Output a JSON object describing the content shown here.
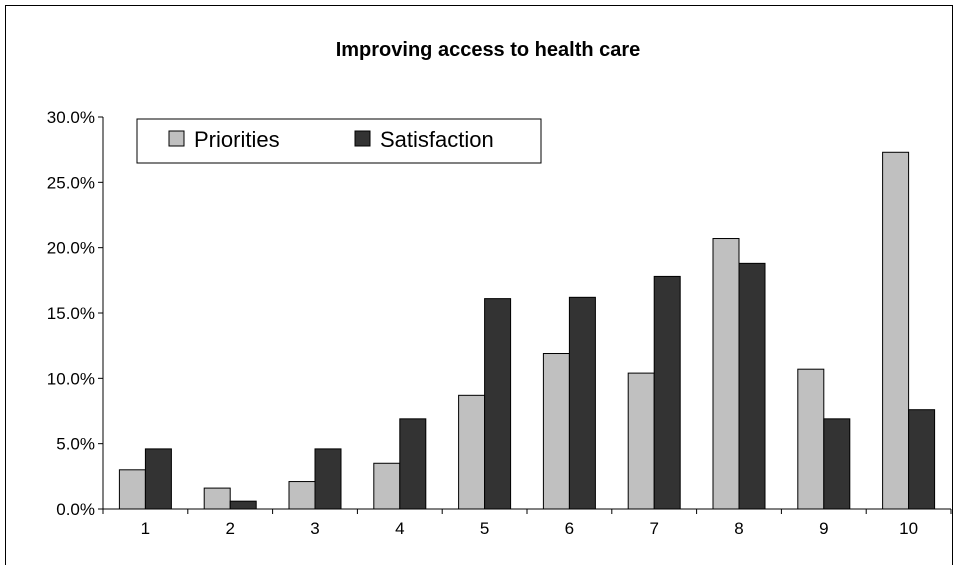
{
  "chart_data": {
    "type": "bar",
    "title": "Improving access to health care",
    "xlabel": "",
    "ylabel": "",
    "categories": [
      "1",
      "2",
      "3",
      "4",
      "5",
      "6",
      "7",
      "8",
      "9",
      "10"
    ],
    "series": [
      {
        "name": "Priorities",
        "color": "#c0c0c0",
        "values": [
          3.0,
          1.6,
          2.1,
          3.5,
          8.7,
          11.9,
          10.4,
          20.7,
          10.7,
          27.3
        ]
      },
      {
        "name": "Satisfaction",
        "color": "#333333",
        "values": [
          4.6,
          0.6,
          4.6,
          6.9,
          16.1,
          16.2,
          17.8,
          18.8,
          6.9,
          7.6
        ]
      }
    ],
    "ylim": [
      0,
      30
    ],
    "yticks": [
      0,
      5,
      10,
      15,
      20,
      25,
      30
    ],
    "ytick_labels": [
      "0.0%",
      "5.0%",
      "10.0%",
      "15.0%",
      "20.0%",
      "25.0%",
      "30.0%"
    ],
    "legend": "top-left",
    "grid": false
  }
}
